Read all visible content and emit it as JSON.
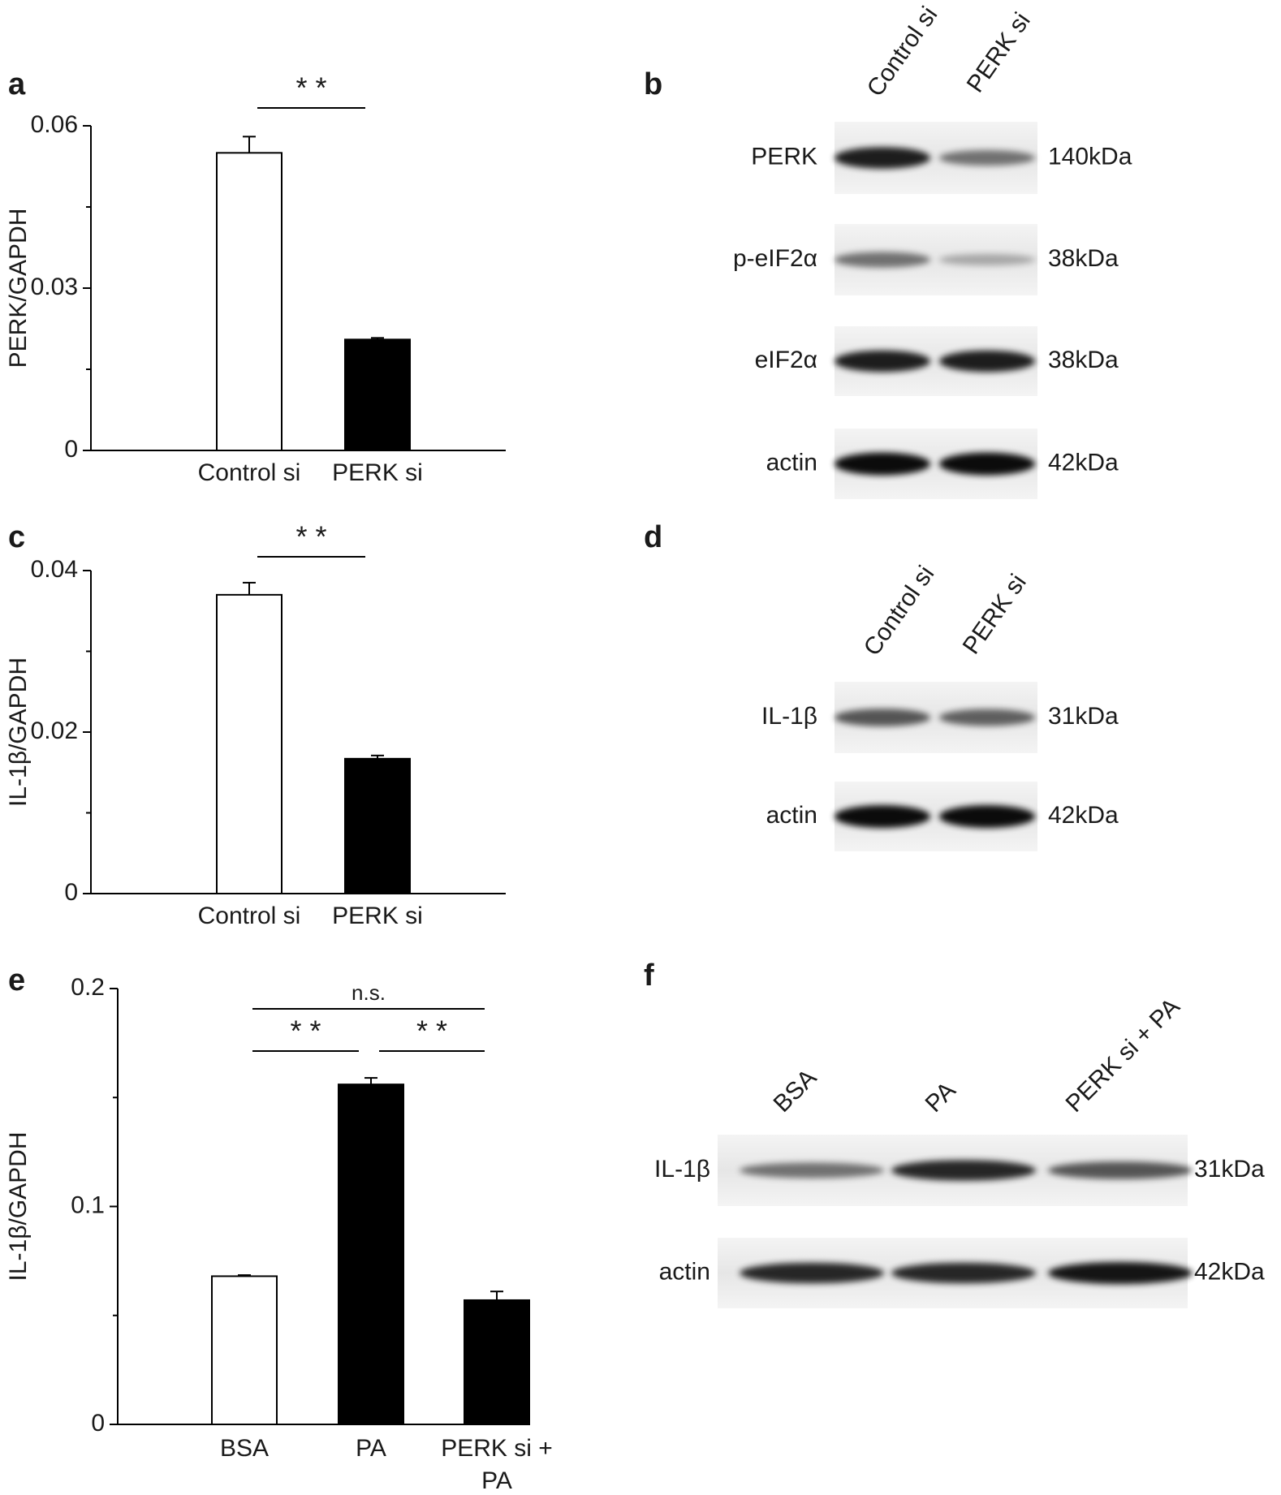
{
  "chart_data": [
    {
      "type": "bar",
      "panel": "a",
      "ylabel": "PERK/GAPDH",
      "categories": [
        "Control si",
        "PERK si"
      ],
      "values": [
        0.055,
        0.0205
      ],
      "errors": [
        0.003,
        0.0003
      ],
      "colors": [
        "#ffffff",
        "#000000"
      ],
      "ylim": [
        0,
        0.06
      ],
      "yticks": [
        0,
        0.03,
        0.06
      ],
      "yminor": [
        0.015,
        0.045
      ],
      "annotations": [
        {
          "text": "* *",
          "pair": [
            0,
            1
          ]
        }
      ]
    },
    {
      "type": "bar",
      "panel": "c",
      "ylabel": "IL-1β/GAPDH",
      "categories": [
        "Control si",
        "PERK si"
      ],
      "values": [
        0.037,
        0.0167
      ],
      "errors": [
        0.0015,
        0.0004
      ],
      "colors": [
        "#ffffff",
        "#000000"
      ],
      "ylim": [
        0,
        0.04
      ],
      "yticks": [
        0,
        0.02,
        0.04
      ],
      "yminor": [
        0.01,
        0.03
      ],
      "annotations": [
        {
          "text": "* *",
          "pair": [
            0,
            1
          ]
        }
      ]
    },
    {
      "type": "bar",
      "panel": "e",
      "ylabel": "IL-1β/GAPDH",
      "categories": [
        "BSA",
        "PA",
        "PERK si + PA"
      ],
      "values": [
        0.068,
        0.156,
        0.057
      ],
      "errors": [
        0.0005,
        0.003,
        0.004
      ],
      "colors": [
        "#ffffff",
        "#000000",
        "#000000"
      ],
      "ylim": [
        0,
        0.2
      ],
      "yticks": [
        0,
        0.1,
        0.2
      ],
      "yminor": [
        0.05,
        0.15
      ],
      "annotations": [
        {
          "text": "n.s.",
          "pair": [
            0,
            2
          ]
        },
        {
          "text": "* *",
          "pair": [
            0,
            1
          ]
        },
        {
          "text": "* *",
          "pair": [
            1,
            2
          ]
        }
      ]
    }
  ],
  "blots": [
    {
      "panel": "b",
      "lanes": [
        "Control si",
        "PERK si"
      ],
      "rows": [
        {
          "label": "PERK",
          "size": "140kDa"
        },
        {
          "label": "p-eIF2α",
          "size": "38kDa"
        },
        {
          "label": "eIF2α",
          "size": "38kDa"
        },
        {
          "label": "actin",
          "size": "42kDa"
        }
      ]
    },
    {
      "panel": "d",
      "lanes": [
        "Control si",
        "PERK si"
      ],
      "rows": [
        {
          "label": "IL-1β",
          "size": "31kDa"
        },
        {
          "label": "actin",
          "size": "42kDa"
        }
      ]
    },
    {
      "panel": "f",
      "lanes": [
        "BSA",
        "PA",
        "PERK si + PA"
      ],
      "rows": [
        {
          "label": "IL-1β",
          "size": "31kDa"
        },
        {
          "label": "actin",
          "size": "42kDa"
        }
      ]
    }
  ]
}
